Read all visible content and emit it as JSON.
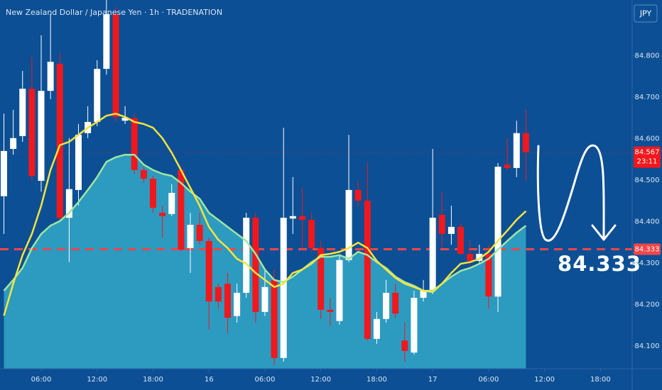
{
  "chart_data": {
    "type": "candlestick",
    "title": "New Zealand Dollar / Japanese Yen · 1h · TRADENATION",
    "currency_button": "JPY",
    "x": [
      2,
      3,
      4,
      5,
      6,
      7,
      8,
      9,
      10,
      11,
      12,
      13,
      14,
      15,
      16,
      17,
      18,
      19,
      20,
      21,
      22,
      23,
      24,
      25,
      26,
      27,
      28,
      29,
      30,
      31,
      32,
      33,
      34,
      35,
      36,
      37,
      38,
      39,
      40,
      41,
      42,
      43,
      44,
      45,
      46,
      47,
      48,
      49,
      50,
      51,
      52,
      53,
      54,
      55,
      56,
      57,
      58
    ],
    "open": [
      84.461,
      84.575,
      84.606,
      84.72,
      84.498,
      84.715,
      84.78,
      84.409,
      84.476,
      84.613,
      84.64,
      84.768,
      84.9,
      84.643,
      84.649,
      84.524,
      84.503,
      84.421,
      84.418,
      84.524,
      84.336,
      84.392,
      84.353,
      84.242,
      84.25,
      84.172,
      84.228,
      84.409,
      84.182,
      84.259,
      84.071,
      84.407,
      84.413,
      84.404,
      84.336,
      84.187,
      84.16,
      84.307,
      84.476,
      84.45,
      84.117,
      84.165,
      84.228,
      84.113,
      84.084,
      84.216,
      84.233,
      84.416,
      84.37,
      84.387,
      84.322,
      84.305,
      84.322,
      84.219,
      84.537,
      84.529,
      84.613
    ],
    "high": [
      84.66,
      84.669,
      84.763,
      84.797,
      84.849,
      84.9,
      84.806,
      84.601,
      84.635,
      84.678,
      84.789,
      84.934,
      84.917,
      84.678,
      84.66,
      84.532,
      84.51,
      84.438,
      84.49,
      84.532,
      84.421,
      84.421,
      84.361,
      84.25,
      84.276,
      84.25,
      84.421,
      84.421,
      84.284,
      84.284,
      84.626,
      84.507,
      84.481,
      84.421,
      84.353,
      84.216,
      84.319,
      84.609,
      84.498,
      84.541,
      84.182,
      84.259,
      84.25,
      84.156,
      84.233,
      84.259,
      84.575,
      84.472,
      84.438,
      84.396,
      84.353,
      84.344,
      84.344,
      84.541,
      84.601,
      84.643,
      84.669
    ],
    "low": [
      84.37,
      84.561,
      84.592,
      84.498,
      84.472,
      84.695,
      84.404,
      84.302,
      84.438,
      84.601,
      84.63,
      84.754,
      84.64,
      84.635,
      84.515,
      84.493,
      84.421,
      84.361,
      84.413,
      84.327,
      84.276,
      84.344,
      84.139,
      84.19,
      84.131,
      84.156,
      84.216,
      84.156,
      84.172,
      84.054,
      84.062,
      84.37,
      84.336,
      84.327,
      84.165,
      84.148,
      84.151,
      84.302,
      84.438,
      84.113,
      84.105,
      84.156,
      84.168,
      84.062,
      84.079,
      84.207,
      84.225,
      84.336,
      84.344,
      84.319,
      84.293,
      84.298,
      84.19,
      84.182,
      84.524,
      84.507,
      84.498
    ],
    "close": [
      84.57,
      84.601,
      84.72,
      84.51,
      84.715,
      84.785,
      84.409,
      84.478,
      84.609,
      84.64,
      84.768,
      84.9,
      84.652,
      84.65,
      84.524,
      84.503,
      84.433,
      84.413,
      84.469,
      84.332,
      84.392,
      84.353,
      84.207,
      84.207,
      84.168,
      84.228,
      84.409,
      84.182,
      84.242,
      84.071,
      84.409,
      84.413,
      84.404,
      84.336,
      84.187,
      84.182,
      84.307,
      84.476,
      84.45,
      84.117,
      84.165,
      84.228,
      84.178,
      84.088,
      84.216,
      84.233,
      84.409,
      84.37,
      84.387,
      84.322,
      84.305,
      84.322,
      84.219,
      84.532,
      84.529,
      84.613,
      84.567
    ],
    "up_color": "#ffffff",
    "down_color": "#f0181c",
    "overlays": [
      {
        "color": "#9fe6a0",
        "fill": "#38b3cf",
        "values": [
          84.233,
          84.259,
          84.288,
          84.336,
          84.37,
          84.39,
          84.401,
          84.421,
          84.447,
          84.476,
          84.507,
          84.544,
          84.555,
          84.561,
          84.561,
          84.537,
          84.524,
          84.515,
          84.51,
          84.493,
          84.472,
          84.455,
          84.421,
          84.404,
          84.387,
          84.37,
          84.353,
          84.322,
          84.284,
          84.259,
          84.254,
          84.267,
          84.284,
          84.302,
          84.315,
          84.315,
          84.319,
          84.31,
          84.327,
          84.319,
          84.302,
          84.288,
          84.267,
          84.254,
          84.245,
          84.233,
          84.233,
          84.25,
          84.267,
          84.281,
          84.288,
          84.298,
          84.31,
          84.332,
          84.353,
          84.373,
          84.39
        ]
      },
      {
        "color": "#f6e43c",
        "values": [
          84.173,
          84.25,
          84.319,
          84.37,
          84.438,
          84.524,
          84.584,
          84.592,
          84.609,
          84.626,
          84.64,
          84.655,
          84.66,
          84.652,
          84.64,
          84.635,
          84.626,
          84.601,
          84.566,
          84.524,
          84.481,
          84.438,
          84.387,
          84.356,
          84.336,
          84.31,
          84.298,
          84.276,
          84.259,
          84.242,
          84.25,
          84.276,
          84.284,
          84.298,
          84.319,
          84.322,
          84.327,
          84.336,
          84.349,
          84.336,
          84.305,
          84.284,
          84.264,
          84.25,
          84.242,
          84.233,
          84.23,
          84.25,
          84.276,
          84.298,
          84.302,
          84.31,
          84.327,
          84.353,
          84.378,
          84.404,
          84.425
        ]
      }
    ],
    "xlim": [
      1.58,
      69.4
    ],
    "xticks": [
      {
        "value": 6,
        "label": "06:00"
      },
      {
        "value": 12,
        "label": "12:00"
      },
      {
        "value": 18,
        "label": "18:00"
      },
      {
        "value": 24,
        "label": "16"
      },
      {
        "value": 30,
        "label": "06:00"
      },
      {
        "value": 36,
        "label": "12:00"
      },
      {
        "value": 42,
        "label": "18:00"
      },
      {
        "value": 48,
        "label": "17"
      },
      {
        "value": 54,
        "label": "06:00"
      },
      {
        "value": 60,
        "label": "12:00"
      },
      {
        "value": 66,
        "label": "18:00"
      }
    ],
    "ylim": [
      84.045,
      84.934
    ],
    "yticks": [
      {
        "value": 84.1,
        "label": "84.100"
      },
      {
        "value": 84.2,
        "label": "84.200"
      },
      {
        "value": 84.3,
        "label": "84.300"
      },
      {
        "value": 84.4,
        "label": "84.400"
      },
      {
        "value": 84.5,
        "label": "84.500"
      },
      {
        "value": 84.6,
        "label": "84.600"
      },
      {
        "value": 84.7,
        "label": "84.700"
      },
      {
        "value": 84.8,
        "label": "84.800"
      }
    ],
    "grid": false,
    "last_price": {
      "value": 84.567,
      "label": "84.567"
    },
    "countdown": "23:11",
    "level": {
      "value": 84.333,
      "label": "84.333",
      "color": "#f0464a"
    },
    "annotation": "84.333"
  }
}
